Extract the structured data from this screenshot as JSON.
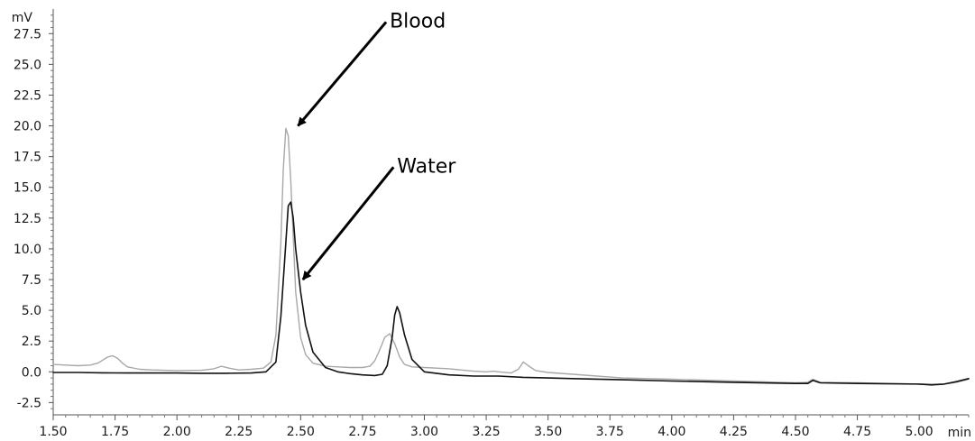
{
  "chart_data": {
    "type": "line",
    "xlabel": "min",
    "ylabel": "mV",
    "xlim": [
      1.5,
      5.2
    ],
    "ylim": [
      -3.5,
      29.5
    ],
    "grid": false,
    "x_ticks": [
      "1.50",
      "1.75",
      "2.00",
      "2.25",
      "2.50",
      "2.75",
      "3.00",
      "3.25",
      "3.50",
      "3.75",
      "4.00",
      "4.25",
      "4.50",
      "4.75",
      "5.00"
    ],
    "y_ticks": [
      "-2.5",
      "0.0",
      "2.5",
      "5.0",
      "7.5",
      "10.0",
      "12.5",
      "15.0",
      "17.5",
      "20.0",
      "22.5",
      "25.0",
      "27.5"
    ],
    "annotations": [
      {
        "text": "Blood",
        "series": "Blood",
        "point": [
          2.46,
          20.0
        ],
        "label_at": [
          2.86,
          28.0
        ]
      },
      {
        "text": "Water",
        "series": "Water",
        "point": [
          2.48,
          7.5
        ],
        "label_at": [
          2.89,
          16.2
        ]
      }
    ],
    "series": [
      {
        "name": "Blood",
        "color": "#a8a8a8",
        "x": [
          1.5,
          1.55,
          1.6,
          1.65,
          1.68,
          1.7,
          1.72,
          1.74,
          1.76,
          1.78,
          1.8,
          1.85,
          1.9,
          2.0,
          2.1,
          2.15,
          2.18,
          2.21,
          2.25,
          2.3,
          2.35,
          2.38,
          2.4,
          2.42,
          2.43,
          2.44,
          2.45,
          2.46,
          2.47,
          2.48,
          2.5,
          2.52,
          2.55,
          2.6,
          2.65,
          2.7,
          2.75,
          2.78,
          2.8,
          2.82,
          2.84,
          2.86,
          2.88,
          2.9,
          2.92,
          2.95,
          3.0,
          3.1,
          3.2,
          3.25,
          3.28,
          3.3,
          3.35,
          3.38,
          3.4,
          3.42,
          3.45,
          3.5,
          3.6,
          3.8,
          4.0,
          4.25,
          4.5,
          4.55,
          4.57,
          4.6,
          4.75,
          5.0,
          5.05,
          5.1,
          5.15,
          5.2
        ],
        "y": [
          0.6,
          0.55,
          0.5,
          0.55,
          0.7,
          0.95,
          1.2,
          1.3,
          1.1,
          0.7,
          0.4,
          0.2,
          0.15,
          0.1,
          0.12,
          0.25,
          0.45,
          0.3,
          0.15,
          0.2,
          0.3,
          0.8,
          3.0,
          10.5,
          16.5,
          19.8,
          19.2,
          15.5,
          11.0,
          6.5,
          2.8,
          1.4,
          0.7,
          0.45,
          0.4,
          0.35,
          0.35,
          0.45,
          0.9,
          1.8,
          2.8,
          3.1,
          2.3,
          1.2,
          0.6,
          0.4,
          0.35,
          0.25,
          0.05,
          0.0,
          0.05,
          0.0,
          -0.1,
          0.2,
          0.8,
          0.5,
          0.1,
          -0.05,
          -0.2,
          -0.5,
          -0.6,
          -0.75,
          -0.9,
          -0.85,
          -0.6,
          -0.85,
          -0.9,
          -1.0,
          -1.1,
          -1.0,
          -0.85,
          -0.6
        ]
      },
      {
        "name": "Water",
        "color": "#111111",
        "x": [
          1.5,
          1.6,
          1.7,
          1.8,
          1.9,
          2.0,
          2.1,
          2.2,
          2.3,
          2.36,
          2.4,
          2.42,
          2.44,
          2.45,
          2.46,
          2.47,
          2.48,
          2.5,
          2.52,
          2.55,
          2.6,
          2.65,
          2.7,
          2.75,
          2.8,
          2.83,
          2.85,
          2.87,
          2.88,
          2.89,
          2.9,
          2.92,
          2.95,
          3.0,
          3.1,
          3.2,
          3.3,
          3.4,
          3.5,
          3.6,
          3.8,
          4.0,
          4.25,
          4.5,
          4.55,
          4.57,
          4.6,
          4.75,
          5.0,
          5.05,
          5.1,
          5.15,
          5.2
        ],
        "y": [
          -0.05,
          -0.05,
          -0.08,
          -0.1,
          -0.1,
          -0.1,
          -0.12,
          -0.12,
          -0.1,
          0.0,
          0.8,
          4.5,
          10.5,
          13.5,
          13.8,
          12.5,
          10.0,
          6.5,
          3.8,
          1.6,
          0.35,
          0.0,
          -0.15,
          -0.25,
          -0.3,
          -0.2,
          0.5,
          2.8,
          4.6,
          5.3,
          4.8,
          3.0,
          1.0,
          0.0,
          -0.25,
          -0.35,
          -0.35,
          -0.45,
          -0.5,
          -0.55,
          -0.65,
          -0.75,
          -0.85,
          -0.95,
          -0.95,
          -0.7,
          -0.9,
          -0.95,
          -1.0,
          -1.05,
          -1.0,
          -0.8,
          -0.55
        ]
      }
    ]
  }
}
